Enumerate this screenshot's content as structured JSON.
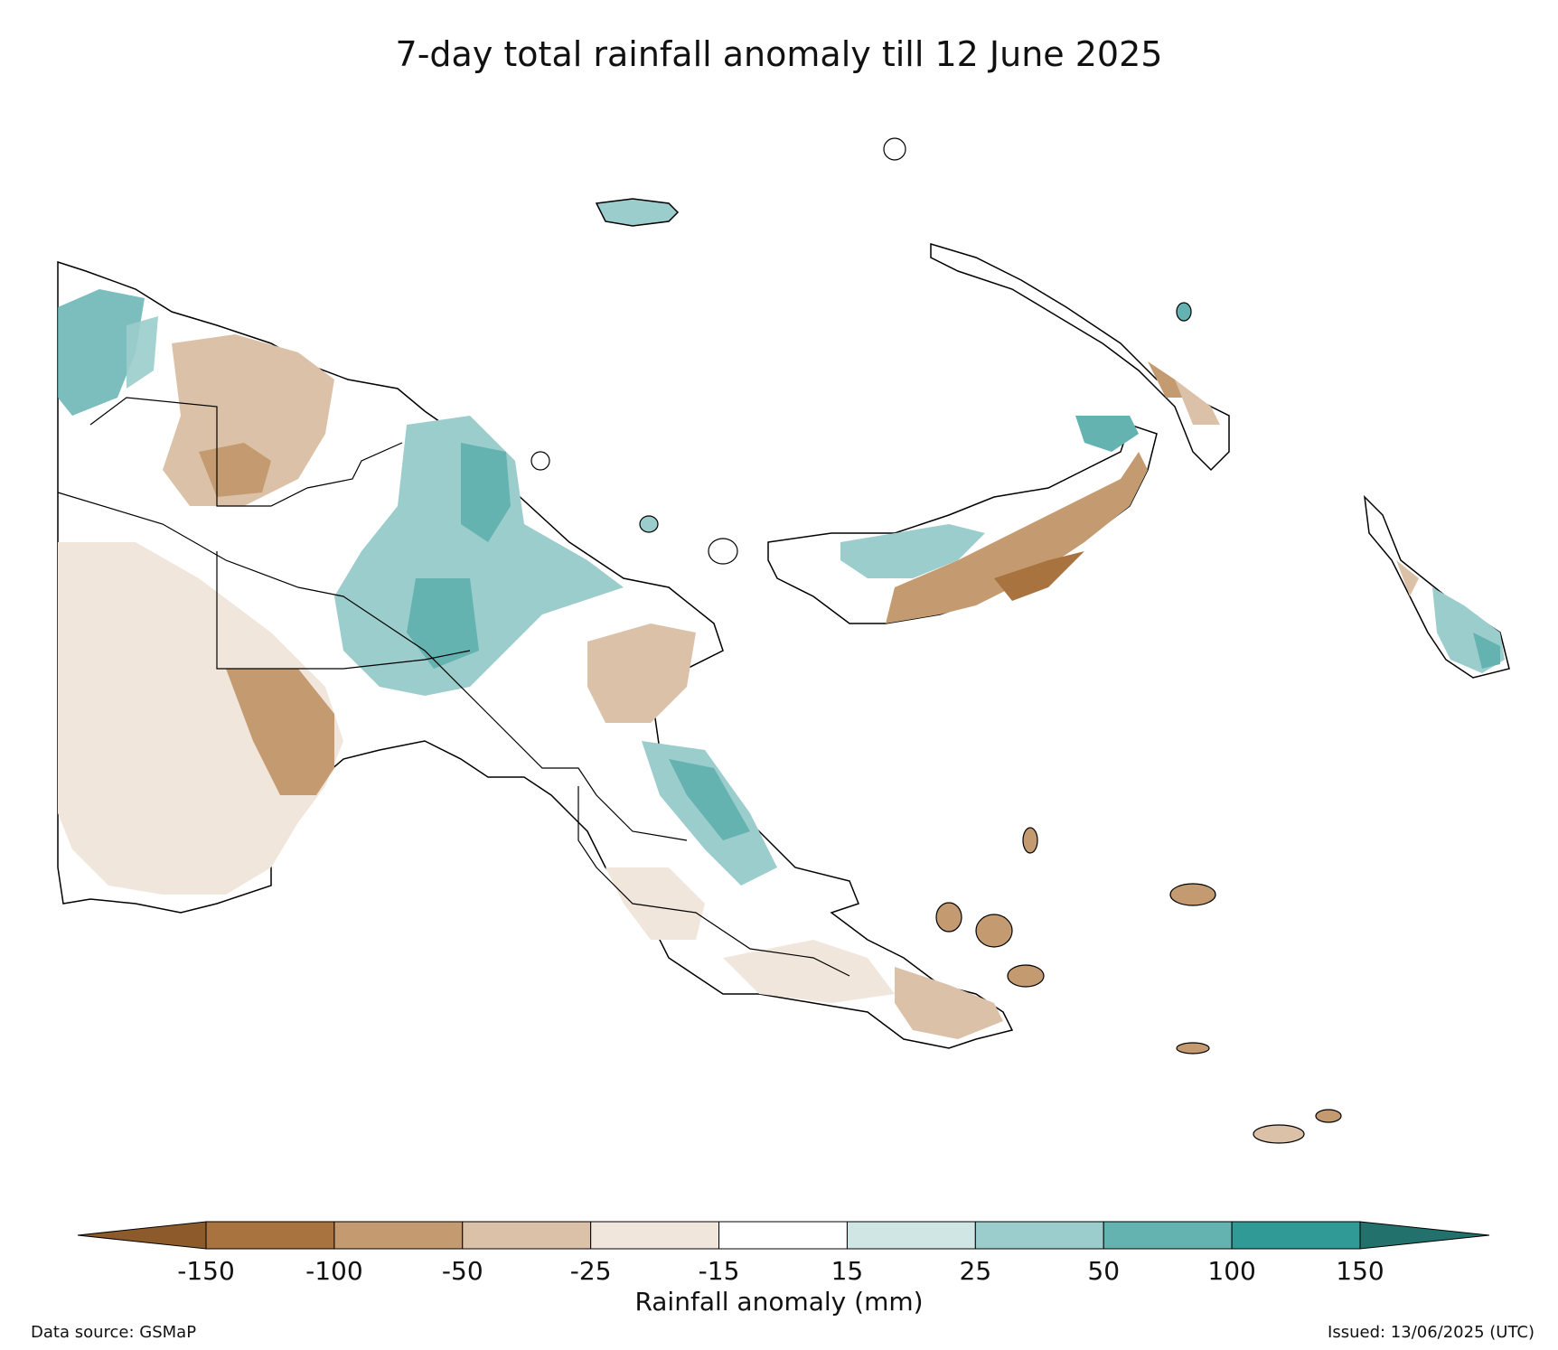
{
  "map": {
    "title": "7-day total rainfall anomaly till 12 June 2025",
    "colorbar": {
      "label": "Rainfall anomaly (mm)",
      "ticks": [
        "-150",
        "-100",
        "-50",
        "-25",
        "-15",
        "15",
        "25",
        "50",
        "100",
        "150"
      ],
      "colors": {
        "below_-150": "#8c5a2b",
        "-150_-100": "#a8733e",
        "-100_-50": "#c49b70",
        "-50_-25": "#dbc1a7",
        "-25_-15": "#f1e6dc",
        "-15_15": "#ffffff",
        "15_25": "#cfe6e5",
        "25_50": "#9acdcc",
        "50_100": "#64b3b1",
        "100_150": "#2f9a96",
        "above_150": "#23716d"
      }
    },
    "source": "Data source: GSMaP",
    "issued": "Issued: 13/06/2025 (UTC)"
  }
}
